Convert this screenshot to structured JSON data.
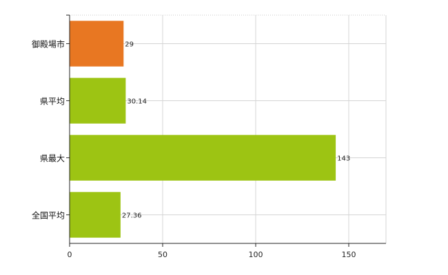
{
  "chart_data": {
    "type": "bar",
    "orientation": "horizontal",
    "categories": [
      "御殿場市",
      "県平均",
      "県最大",
      "全国平均"
    ],
    "values": [
      29,
      30.14,
      143,
      27.36
    ],
    "data_labels": [
      "29",
      "30.14",
      "143",
      "27.36"
    ],
    "bar_colors": [
      "#e87722",
      "#9dc413",
      "#9dc413",
      "#9dc413"
    ],
    "xlim": [
      0,
      170
    ],
    "xticks": [
      0,
      50,
      100,
      150
    ],
    "title": "",
    "xlabel": "",
    "ylabel": "",
    "grid": true,
    "legend": "none"
  }
}
